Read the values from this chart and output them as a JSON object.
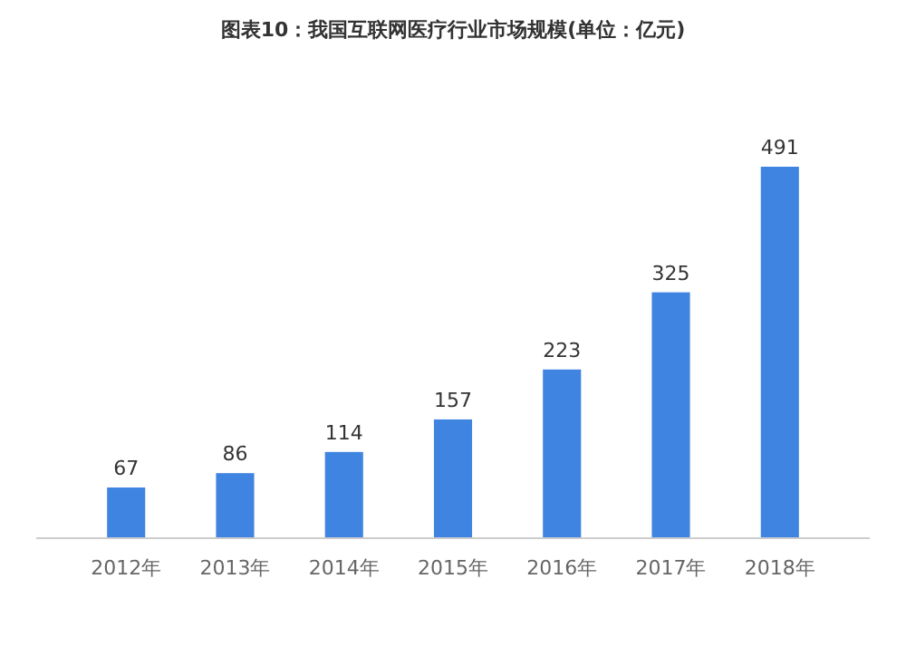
{
  "chart_data": {
    "type": "bar",
    "title": "图表10：我国互联网医疗行业市场规模(单位：亿元)",
    "categories": [
      "2012年",
      "2013年",
      "2014年",
      "2015年",
      "2016年",
      "2017年",
      "2018年"
    ],
    "values": [
      67,
      86,
      114,
      157,
      223,
      325,
      491
    ],
    "color": "#3f84e0",
    "data_labels": true
  }
}
